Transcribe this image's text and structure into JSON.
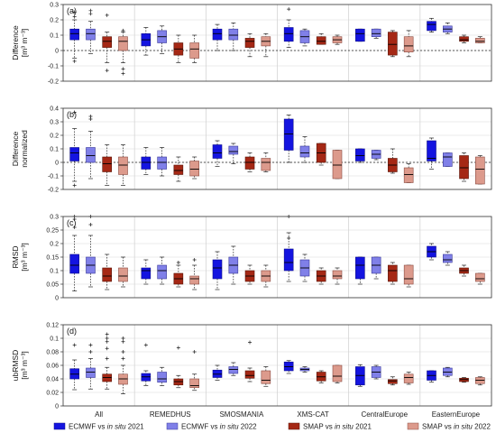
{
  "categories": [
    "All",
    "REMEDHUS",
    "SMOSMANIA",
    "XMS-CAT",
    "CentralEurope",
    "EasternEurope"
  ],
  "legend": [
    {
      "key": "e21",
      "label": "ECMWF vs ",
      "italic": "in situ",
      "year": " 2021",
      "color": "#1414e0"
    },
    {
      "key": "e22",
      "label": "ECMWF vs ",
      "italic": "in situ",
      "year": " 2022",
      "color": "#8080e8"
    },
    {
      "key": "s21",
      "label": "SMAP vs ",
      "italic": "in situ",
      "year": " 2021",
      "color": "#a52815"
    },
    {
      "key": "s22",
      "label": "SMAP vs ",
      "italic": "in situ",
      "year": " 2022",
      "color": "#dc9a8c"
    }
  ],
  "chart_data": [
    {
      "type": "box",
      "panel": "(a)",
      "ylabel": [
        "Difference",
        "[m³ m⁻³]"
      ],
      "ylim": [
        -0.2,
        0.3
      ],
      "ticks": [
        -0.2,
        -0.1,
        0,
        0.1,
        0.2,
        0.3
      ],
      "tick_labels": [
        "-0.2",
        "-0.1",
        "0",
        "0.1",
        "0.2",
        "0.3"
      ],
      "zero_line": true,
      "boxes": [
        [
          [
            -0.05,
            0.07,
            0.11,
            0.14,
            0.2,
            [
              0.22,
              0.25,
              -0.07
            ]
          ],
          [
            -0.02,
            0.07,
            0.11,
            0.14,
            0.19,
            [
              0.24,
              0.26
            ]
          ],
          [
            -0.08,
            0.02,
            0.06,
            0.09,
            0.12,
            [
              -0.13,
              0.23
            ]
          ],
          [
            -0.08,
            0.0,
            0.06,
            0.09,
            0.12,
            [
              -0.15,
              -0.12,
              0.13
            ]
          ]
        ],
        [
          [
            -0.03,
            0.03,
            0.07,
            0.11,
            0.15,
            []
          ],
          [
            -0.02,
            0.05,
            0.09,
            0.13,
            0.16,
            []
          ],
          [
            -0.08,
            -0.03,
            0.01,
            0.05,
            0.1,
            []
          ],
          [
            -0.08,
            -0.05,
            0.01,
            0.05,
            0.1,
            []
          ]
        ],
        [
          [
            0.0,
            0.07,
            0.11,
            0.14,
            0.17,
            []
          ],
          [
            0.0,
            0.07,
            0.1,
            0.14,
            0.18,
            []
          ],
          [
            -0.04,
            0.02,
            0.06,
            0.08,
            0.11,
            []
          ],
          [
            -0.04,
            0.03,
            0.06,
            0.09,
            0.11,
            []
          ]
        ],
        [
          [
            0.02,
            0.06,
            0.11,
            0.15,
            0.2,
            [
              0.27
            ]
          ],
          [
            0.03,
            0.05,
            0.09,
            0.13,
            0.14,
            []
          ],
          [
            0.04,
            0.04,
            0.06,
            0.09,
            0.11,
            []
          ],
          [
            0.04,
            0.05,
            0.07,
            0.09,
            0.1,
            []
          ]
        ],
        [
          [
            0.06,
            0.06,
            0.11,
            0.14,
            0.14,
            []
          ],
          [
            0.08,
            0.09,
            0.11,
            0.14,
            0.14,
            []
          ],
          [
            -0.04,
            -0.03,
            0.04,
            0.12,
            0.13,
            []
          ],
          [
            -0.04,
            -0.01,
            0.03,
            0.09,
            0.13,
            []
          ]
        ],
        [
          [
            0.12,
            0.13,
            0.17,
            0.19,
            0.21,
            []
          ],
          [
            0.11,
            0.12,
            0.14,
            0.16,
            0.18,
            []
          ],
          [
            0.05,
            0.06,
            0.07,
            0.09,
            0.1,
            []
          ],
          [
            0.05,
            0.05,
            0.06,
            0.08,
            0.09,
            []
          ]
        ]
      ]
    },
    {
      "type": "box",
      "panel": "(b)",
      "ylabel": [
        "Difference",
        "normalized"
      ],
      "ylim": [
        -0.2,
        0.4
      ],
      "ticks": [
        -0.2,
        -0.1,
        0,
        0.1,
        0.2,
        0.3,
        0.4
      ],
      "tick_labels": [
        "-0.2",
        "-0.1",
        "0",
        "0.1",
        "0.2",
        "0.3",
        "0.4"
      ],
      "zero_line": true,
      "boxes": [
        [
          [
            -0.14,
            0.01,
            0.07,
            0.11,
            0.25,
            [
              0.37,
              0.41,
              -0.17
            ]
          ],
          [
            -0.12,
            0.0,
            0.05,
            0.11,
            0.23,
            [
              0.32,
              0.34
            ]
          ],
          [
            -0.17,
            -0.07,
            -0.01,
            0.04,
            0.13,
            []
          ],
          [
            -0.17,
            -0.09,
            -0.02,
            0.04,
            0.13,
            []
          ]
        ],
        [
          [
            -0.09,
            -0.05,
            0.0,
            0.04,
            0.11,
            []
          ],
          [
            -0.1,
            -0.05,
            0.0,
            0.04,
            0.11,
            []
          ],
          [
            -0.14,
            -0.09,
            -0.06,
            -0.02,
            0.04,
            []
          ],
          [
            -0.12,
            -0.1,
            -0.05,
            0.01,
            0.04,
            []
          ]
        ],
        [
          [
            -0.03,
            0.03,
            0.07,
            0.13,
            0.16,
            []
          ],
          [
            -0.01,
            0.06,
            0.08,
            0.12,
            0.14,
            []
          ],
          [
            -0.07,
            -0.05,
            0.0,
            0.04,
            0.07,
            []
          ],
          [
            -0.07,
            -0.06,
            0.0,
            0.03,
            0.07,
            []
          ]
        ],
        [
          [
            0.0,
            0.09,
            0.21,
            0.32,
            0.35,
            []
          ],
          [
            0.0,
            0.04,
            0.07,
            0.12,
            0.19,
            []
          ],
          [
            -0.02,
            0.0,
            0.07,
            0.14,
            0.14,
            []
          ],
          [
            -0.12,
            -0.12,
            -0.02,
            0.09,
            0.09,
            []
          ]
        ],
        [
          [
            0.0,
            0.01,
            0.05,
            0.1,
            0.1,
            []
          ],
          [
            0.02,
            0.03,
            0.06,
            0.09,
            0.09,
            []
          ],
          [
            -0.08,
            -0.07,
            -0.02,
            0.03,
            0.1,
            []
          ],
          [
            -0.15,
            -0.15,
            -0.09,
            -0.04,
            -0.01,
            []
          ]
        ],
        [
          [
            -0.05,
            0.01,
            0.03,
            0.16,
            0.18,
            []
          ],
          [
            -0.03,
            -0.03,
            0.04,
            0.07,
            0.07,
            []
          ],
          [
            -0.14,
            -0.12,
            -0.04,
            0.05,
            0.07,
            []
          ],
          [
            -0.16,
            -0.16,
            -0.05,
            0.04,
            0.05,
            []
          ]
        ]
      ]
    },
    {
      "type": "box",
      "panel": "(c)",
      "ylabel": [
        "RMSD",
        "[m³ m⁻³]"
      ],
      "ylim": [
        0,
        0.3
      ],
      "ticks": [
        0,
        0.05,
        0.1,
        0.15,
        0.2,
        0.25,
        0.3
      ],
      "tick_labels": [
        "0",
        "0.05",
        "0.1",
        "0.15",
        "0.2",
        "0.25",
        "0.3"
      ],
      "zero_line": false,
      "boxes": [
        [
          [
            0.025,
            0.09,
            0.12,
            0.16,
            0.23,
            [
              0.26,
              0.3,
              0.29
            ]
          ],
          [
            0.04,
            0.09,
            0.12,
            0.15,
            0.23,
            [
              0.27,
              0.3
            ]
          ],
          [
            0.03,
            0.06,
            0.08,
            0.11,
            0.16,
            []
          ],
          [
            0.04,
            0.06,
            0.08,
            0.11,
            0.15,
            []
          ]
        ],
        [
          [
            0.05,
            0.07,
            0.1,
            0.11,
            0.14,
            []
          ],
          [
            0.05,
            0.07,
            0.1,
            0.12,
            0.15,
            []
          ],
          [
            0.04,
            0.05,
            0.07,
            0.09,
            0.12,
            [
              0.13
            ]
          ],
          [
            0.03,
            0.05,
            0.07,
            0.08,
            0.12,
            [
              0.14
            ]
          ]
        ],
        [
          [
            0.03,
            0.07,
            0.11,
            0.14,
            0.17,
            []
          ],
          [
            0.05,
            0.09,
            0.12,
            0.15,
            0.19,
            []
          ],
          [
            0.05,
            0.06,
            0.08,
            0.1,
            0.12,
            []
          ],
          [
            0.04,
            0.06,
            0.08,
            0.1,
            0.12,
            []
          ]
        ],
        [
          [
            0.06,
            0.1,
            0.13,
            0.18,
            0.24,
            [
              0.3,
              0.22
            ]
          ],
          [
            0.06,
            0.08,
            0.11,
            0.14,
            0.16,
            []
          ],
          [
            0.05,
            0.06,
            0.08,
            0.1,
            0.11,
            []
          ],
          [
            0.05,
            0.07,
            0.08,
            0.1,
            0.11,
            []
          ]
        ],
        [
          [
            0.05,
            0.07,
            0.12,
            0.15,
            0.15,
            []
          ],
          [
            0.07,
            0.09,
            0.12,
            0.15,
            0.15,
            []
          ],
          [
            0.05,
            0.06,
            0.1,
            0.12,
            0.13,
            []
          ],
          [
            0.04,
            0.05,
            0.07,
            0.12,
            0.12,
            []
          ]
        ],
        [
          [
            0.14,
            0.15,
            0.17,
            0.19,
            0.2,
            []
          ],
          [
            0.12,
            0.13,
            0.14,
            0.16,
            0.17,
            []
          ],
          [
            0.08,
            0.09,
            0.1,
            0.11,
            0.12,
            []
          ],
          [
            0.05,
            0.06,
            0.07,
            0.09,
            0.09,
            []
          ]
        ]
      ]
    },
    {
      "type": "box",
      "panel": "(d)",
      "ylabel": [
        "ubRMSD",
        "[m³ m⁻³]"
      ],
      "ylim": [
        0,
        0.12
      ],
      "ticks": [
        0,
        0.02,
        0.04,
        0.06,
        0.08,
        0.1,
        0.12
      ],
      "tick_labels": [
        "0",
        "0.02",
        "0.04",
        "0.06",
        "0.08",
        "0.1",
        "0.12"
      ],
      "zero_line": false,
      "boxes": [
        [
          [
            0.024,
            0.04,
            0.047,
            0.055,
            0.068,
            [
              0.09
            ]
          ],
          [
            0.025,
            0.042,
            0.05,
            0.056,
            0.07,
            [
              0.09,
              0.08
            ]
          ],
          [
            0.025,
            0.036,
            0.042,
            0.047,
            0.057,
            [
              0.07,
              0.085,
              0.095,
              0.1,
              0.106
            ]
          ],
          [
            0.018,
            0.032,
            0.04,
            0.047,
            0.06,
            [
              0.07,
              0.08,
              0.095,
              0.1
            ]
          ]
        ],
        [
          [
            0.03,
            0.037,
            0.043,
            0.048,
            0.052,
            [
              0.09
            ]
          ],
          [
            0.03,
            0.035,
            0.04,
            0.05,
            0.057,
            []
          ],
          [
            0.027,
            0.031,
            0.036,
            0.04,
            0.045,
            [
              0.086
            ]
          ],
          [
            0.023,
            0.027,
            0.03,
            0.04,
            0.047,
            [
              0.08
            ]
          ]
        ],
        [
          [
            0.038,
            0.042,
            0.047,
            0.053,
            0.06,
            []
          ],
          [
            0.045,
            0.048,
            0.054,
            0.058,
            0.064,
            []
          ],
          [
            0.036,
            0.041,
            0.045,
            0.052,
            0.056,
            [
              0.094
            ]
          ],
          [
            0.029,
            0.033,
            0.038,
            0.052,
            0.058,
            []
          ]
        ],
        [
          [
            0.048,
            0.052,
            0.058,
            0.065,
            0.067,
            []
          ],
          [
            0.05,
            0.052,
            0.054,
            0.056,
            0.058,
            []
          ],
          [
            0.034,
            0.037,
            0.043,
            0.05,
            0.052,
            []
          ],
          [
            0.034,
            0.036,
            0.044,
            0.06,
            0.06,
            []
          ]
        ],
        [
          [
            0.029,
            0.031,
            0.045,
            0.058,
            0.061,
            []
          ],
          [
            0.04,
            0.042,
            0.05,
            0.058,
            0.06,
            []
          ],
          [
            0.031,
            0.033,
            0.037,
            0.039,
            0.043,
            []
          ],
          [
            0.032,
            0.034,
            0.042,
            0.047,
            0.05,
            []
          ]
        ],
        [
          [
            0.035,
            0.038,
            0.045,
            0.052,
            0.052,
            []
          ],
          [
            0.043,
            0.045,
            0.05,
            0.056,
            0.057,
            []
          ],
          [
            0.035,
            0.036,
            0.039,
            0.041,
            0.042,
            []
          ],
          [
            0.031,
            0.033,
            0.038,
            0.042,
            0.043,
            []
          ]
        ]
      ]
    }
  ]
}
